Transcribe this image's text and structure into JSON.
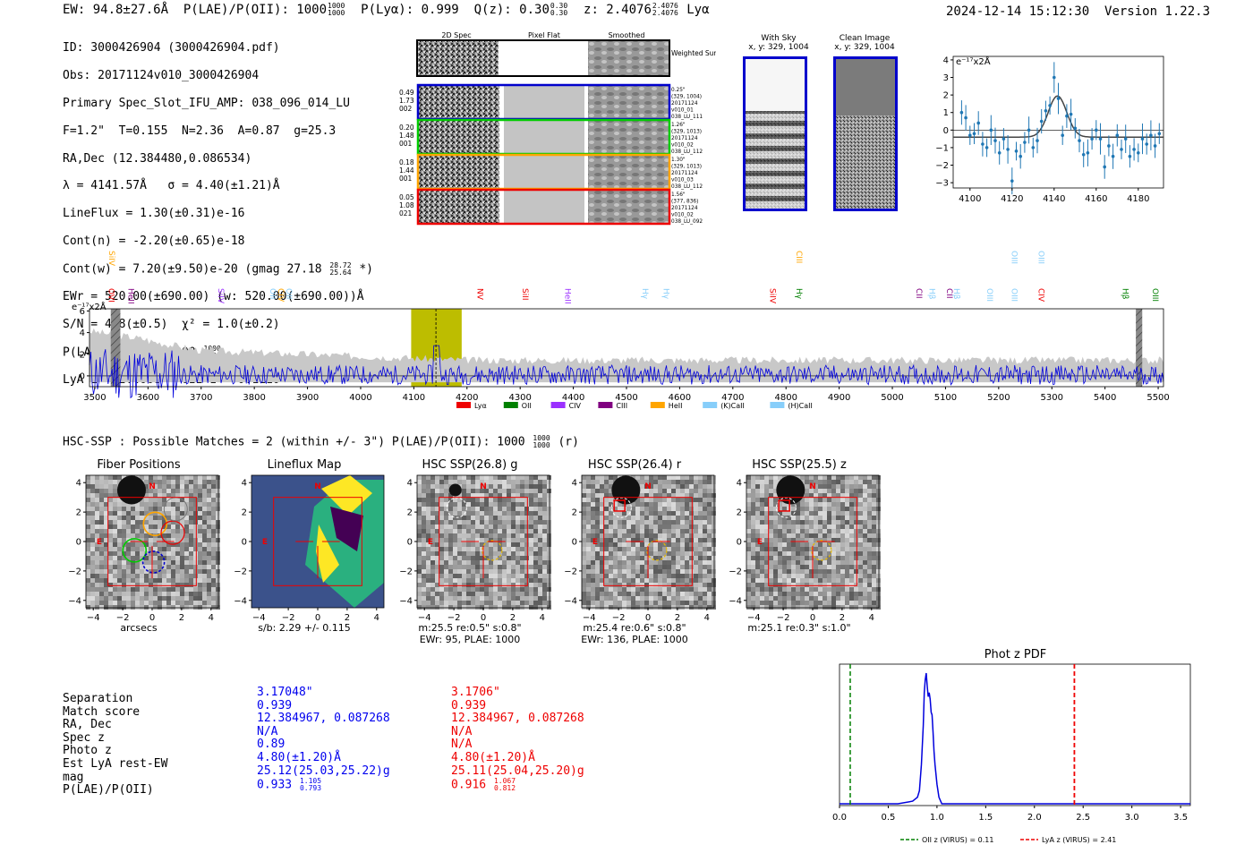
{
  "header": {
    "ew": "EW: 94.8±27.6Å",
    "plae_label": "P(LAE)/P(OII): 1000",
    "plae_hi": "1000",
    "plae_lo": "1000",
    "plya": "P(Lyα): 0.999",
    "qz_label": "Q(z): 0.30",
    "qz_hi": "0.30",
    "qz_lo": "0.30",
    "z_label": "z: 2.4076",
    "z_hi": "2.4076",
    "z_lo": "2.4076",
    "z_line": "Lyα",
    "timestamp": "2024-12-14 15:12:30",
    "version": "Version 1.22.3"
  },
  "info": {
    "id": "ID: 3000426904 (3000426904.pdf)",
    "obs": "Obs: 20171124v010_3000426904",
    "primary": "Primary Spec_Slot_IFU_AMP: 038_096_014_LU",
    "seeing": "F=1.2\"  T=0.155  N=2.36  A=0.87  g=25.3",
    "radec": "RA,Dec (12.384480,0.086534)",
    "lambda": "λ = 4141.57Å   σ = 4.40(±1.21)Å",
    "lineflux": "LineFlux = 1.30(±0.31)e-16",
    "contn": "Cont(n) = -2.20(±0.65)e-18",
    "contw": "Cont(w) = 7.20(±9.50)e-20 (gmag 27.18",
    "contw_hi": "28.72",
    "contw_lo": "25.64",
    "contw_end": "*)",
    "ewr": "EWr = 520.00(±690.00) (w: 520.00(±690.00))Å",
    "sn": "S/N = 4.8(±0.5)  χ² = 1.0(±0.2)",
    "plae": "P(LAE)/P(OII): 1000",
    "plae_hi": "1000",
    "plae_lo": "1000",
    "z": "LyA z = 2.4068   OII z = 0.1110"
  },
  "spec2d": {
    "col_titles": [
      "2D Spec",
      "Pixel Flat",
      "Smoothed"
    ],
    "summary_label": "Weighted Sum",
    "rows": [
      {
        "l1": "0.49",
        "l2": "1.73",
        "l3": "002",
        "r1": "0.25\"",
        "r2": "(329, 1004)",
        "r3": "20171124",
        "r4": "v010_01",
        "r5": "038_LU_111",
        "color": "#0000cc"
      },
      {
        "l1": "0.20",
        "l2": "1.48",
        "l3": "001",
        "r1": "1.26\"",
        "r2": "(329, 1013)",
        "r3": "20171124",
        "r4": "v010_02",
        "r5": "038_LU_112",
        "color": "#00cc00"
      },
      {
        "l1": "0.18",
        "l2": "1.44",
        "l3": "001",
        "r1": "1.30\"",
        "r2": "(329, 1013)",
        "r3": "20171124",
        "r4": "v010_03",
        "r5": "038_LU_112",
        "color": "#ffa500"
      },
      {
        "l1": "0.05",
        "l2": "1.08",
        "l3": "021",
        "r1": "1.56\"",
        "r2": "(377, 836)",
        "r3": "20171124",
        "r4": "v010_02",
        "r5": "038_LU_092",
        "color": "#ee0000"
      }
    ]
  },
  "sky": {
    "with_sky_title": "With Sky",
    "with_sky_coord": "x, y: 329, 1004",
    "clean_title": "Clean Image",
    "clean_coord": "x, y: 329, 1004"
  },
  "zoom_spectrum": {
    "units": "e⁻¹⁷x2Å",
    "chart_data": {
      "type": "scatter",
      "x": [
        4096,
        4098,
        4100,
        4102,
        4104,
        4106,
        4108,
        4110,
        4112,
        4114,
        4116,
        4118,
        4120,
        4122,
        4124,
        4126,
        4128,
        4130,
        4132,
        4134,
        4136,
        4138,
        4140,
        4142,
        4144,
        4146,
        4148,
        4150,
        4152,
        4154,
        4156,
        4158,
        4160,
        4162,
        4164,
        4166,
        4168,
        4170,
        4172,
        4174,
        4176,
        4178,
        4180,
        4182,
        4184,
        4186,
        4188,
        4190
      ],
      "y": [
        1.0,
        0.7,
        -0.3,
        -0.2,
        0.4,
        -0.8,
        -1.0,
        0.0,
        -0.6,
        -1.3,
        -0.5,
        -1.1,
        -2.9,
        -1.2,
        -1.5,
        -0.7,
        0.0,
        -1.0,
        -0.6,
        0.5,
        1.1,
        1.4,
        3.0,
        1.8,
        -0.3,
        0.8,
        0.9,
        0.1,
        -0.6,
        -1.4,
        -1.3,
        -0.5,
        0.0,
        -0.5,
        -2.1,
        -0.9,
        -1.5,
        -0.3,
        -1.1,
        -0.5,
        -1.5,
        -1.1,
        -1.3,
        -0.5,
        -0.8,
        -0.3,
        -0.9,
        -0.2
      ],
      "fit_center": 4141.6,
      "fit_sigma": 4.4,
      "fit_amp": 1.8,
      "xlim": [
        4092,
        4192
      ],
      "ylim": [
        -3.3,
        4.2
      ],
      "xticks": [
        "4100",
        "4120",
        "4140",
        "4160",
        "4180"
      ],
      "yticks": [
        "4",
        "3",
        "2",
        "1",
        "0",
        "−1",
        "−2",
        "−3"
      ]
    }
  },
  "full_spectrum": {
    "units": "e⁻¹⁷x2Å",
    "xticks": [
      "3500",
      "3600",
      "3700",
      "3800",
      "3900",
      "4000",
      "4100",
      "4200",
      "4300",
      "4400",
      "4500",
      "4600",
      "4700",
      "4800",
      "4900",
      "5000",
      "5100",
      "5200",
      "5300",
      "5400",
      "5500"
    ],
    "yticks": [
      "6",
      "4",
      "2",
      "0"
    ],
    "lines_upper": [
      {
        "name": "SiIV",
        "color": "#ffa500",
        "wave": 3527
      },
      {
        "name": "CIII",
        "color": "#ffa500",
        "wave": 4820
      },
      {
        "name": "OIII",
        "color": "#87cefa",
        "wave": 5225
      },
      {
        "name": "OIII",
        "color": "#87cefa",
        "wave": 5275
      }
    ],
    "lines_lower": [
      {
        "name": "OVI",
        "color": "#ee0000",
        "wave": 3526
      },
      {
        "name": "HeII",
        "color": "#800080",
        "wave": 3563
      },
      {
        "name": "SiIV",
        "color": "#9b30ff",
        "wave": 3732
      },
      {
        "name": "OII",
        "color": "#87cefa",
        "wave": 3830
      },
      {
        "name": "CIV",
        "color": "#ffa500",
        "wave": 3845
      },
      {
        "name": "OII",
        "color": "#87cefa",
        "wave": 3860
      },
      {
        "name": "NV",
        "color": "#ee0000",
        "wave": 4220
      },
      {
        "name": "SiII",
        "color": "#ee0000",
        "wave": 4305
      },
      {
        "name": "HeII",
        "color": "#9b30ff",
        "wave": 4385
      },
      {
        "name": "Hγ",
        "color": "#87cefa",
        "wave": 4530
      },
      {
        "name": "Hγ",
        "color": "#87cefa",
        "wave": 4570
      },
      {
        "name": "SiIV",
        "color": "#ee0000",
        "wave": 4770
      },
      {
        "name": "Hγ",
        "color": "#008000",
        "wave": 4820
      },
      {
        "name": "CII",
        "color": "#800080",
        "wave": 5045
      },
      {
        "name": "Hβ",
        "color": "#87cefa",
        "wave": 5070
      },
      {
        "name": "CII",
        "color": "#800080",
        "wave": 5103
      },
      {
        "name": "Hβ",
        "color": "#87cefa",
        "wave": 5116
      },
      {
        "name": "OIII",
        "color": "#87cefa",
        "wave": 5178
      },
      {
        "name": "OIII",
        "color": "#87cefa",
        "wave": 5225
      },
      {
        "name": "CIV",
        "color": "#ee0000",
        "wave": 5275
      },
      {
        "name": "Hβ",
        "color": "#008000",
        "wave": 5433
      },
      {
        "name": "OIII",
        "color": "#008000",
        "wave": 5490
      }
    ],
    "legend": [
      {
        "label": "Lyα",
        "color": "#ee0000"
      },
      {
        "label": "OII",
        "color": "#008000"
      },
      {
        "label": "CIV",
        "color": "#9b30ff"
      },
      {
        "label": "CIII",
        "color": "#800080"
      },
      {
        "label": "HeII",
        "color": "#ffa500"
      },
      {
        "label": "(K)CaII",
        "color": "#87cefa"
      },
      {
        "label": "(H)CaII",
        "color": "#87cefa"
      }
    ],
    "chart_data": {
      "type": "line",
      "xlim": [
        3490,
        5510
      ],
      "ylim": [
        -1,
        6.2
      ],
      "highlight": [
        4095,
        4190
      ],
      "marker": 4141.6,
      "hatched": [
        [
          3530,
          3548
        ],
        [
          5458,
          5470
        ]
      ]
    }
  },
  "hsc": {
    "summary": "HSC-SSP : Possible Matches = 2 (within +/- 3\")  P(LAE)/P(OII): 1000",
    "summary_hi": "1000",
    "summary_lo": "1000",
    "summary_end": "(r)",
    "panels": [
      {
        "title": "Fiber Positions",
        "label1": "arcsecs",
        "label2": ""
      },
      {
        "title": "Lineflux Map",
        "label1": "s/b: 2.29 +/- 0.115",
        "label2": ""
      },
      {
        "title": "HSC SSP(26.8) g",
        "label1": "m:25.5  re:0.5\"  s:0.8\"",
        "label2": "EWr: 95, PLAE: 1000"
      },
      {
        "title": "HSC SSP(26.4) r",
        "label1": "m:25.4  re:0.6\"  s:0.8\"",
        "label2": "EWr: 136, PLAE: 1000"
      },
      {
        "title": "HSC SSP(25.5) z",
        "label1": "m:25.1  re:0.3\"  s:1.0\"",
        "label2": ""
      }
    ],
    "ticks": [
      "4",
      "2",
      "0",
      "−2",
      "−4"
    ],
    "xticks": [
      "−4",
      "−2",
      "0",
      "2",
      "4"
    ],
    "north": "N",
    "east": "E"
  },
  "matches": {
    "labels": [
      "Separation",
      "Match score",
      "RA, Dec",
      "Spec z",
      "Photo z",
      "Est LyA rest-EW",
      "mag",
      "P(LAE)/P(OII)"
    ],
    "blue": [
      "3.17048\"",
      "0.939",
      "12.384967, 0.087268",
      "N/A",
      "0.89",
      "4.80(±1.20)Å",
      "25.12(25.03,25.22)g",
      "0.933"
    ],
    "blue_hi": "1.105",
    "blue_lo": "0.793",
    "red": [
      "3.1706\"",
      "0.939",
      "12.384967, 0.087268",
      "N/A",
      "N/A",
      "4.80(±1.20)Å",
      "25.11(25.04,25.20)g",
      "0.916"
    ],
    "red_hi": "1.067",
    "red_lo": "0.812"
  },
  "photz": {
    "title": "Phot z PDF",
    "legend_oii": "OII z (VIRUS) = 0.11",
    "legend_lya": "LyA z (VIRUS) = 2.41",
    "chart_data": {
      "type": "line",
      "x": [
        0.0,
        0.6,
        0.75,
        0.8,
        0.82,
        0.84,
        0.86,
        0.87,
        0.88,
        0.89,
        0.9,
        0.91,
        0.92,
        0.93,
        0.94,
        0.95,
        0.96,
        0.97,
        0.98,
        1.0,
        1.02,
        1.05,
        1.2,
        3.6
      ],
      "y": [
        0.0,
        0.0,
        0.02,
        0.05,
        0.1,
        0.3,
        0.6,
        0.85,
        0.95,
        1.0,
        0.9,
        0.82,
        0.85,
        0.8,
        0.7,
        0.68,
        0.55,
        0.4,
        0.3,
        0.15,
        0.05,
        0.0,
        0.0,
        0.0
      ],
      "xlim": [
        0.0,
        3.6
      ],
      "oii_z": 0.11,
      "lya_z": 2.41,
      "xticks": [
        "0.0",
        "0.5",
        "1.0",
        "1.5",
        "2.0",
        "2.5",
        "3.0",
        "3.5"
      ]
    }
  }
}
